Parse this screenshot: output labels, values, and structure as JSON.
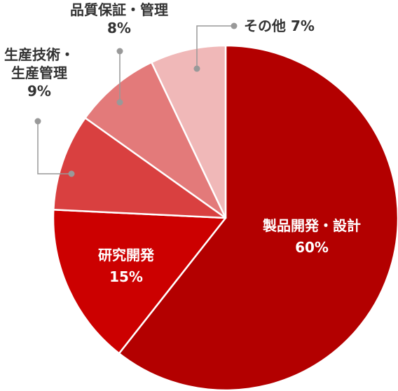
{
  "chart_data": {
    "type": "pie",
    "title": "",
    "colors": [
      "#b30000",
      "#cc0000",
      "#d94040",
      "#e37a7a",
      "#f0b8b8"
    ],
    "leader_color": "#999999",
    "slices": [
      {
        "label": "製品開発・設計",
        "value": 60,
        "value_label": "60%"
      },
      {
        "label": "研究開発",
        "value": 15,
        "value_label": "15%"
      },
      {
        "label": [
          "生産技術・",
          "生産管理"
        ],
        "value": 9,
        "value_label": "9%"
      },
      {
        "label": "品質保証・管理",
        "value": 8,
        "value_label": "8%"
      },
      {
        "label": "その他",
        "value": 7,
        "value_label": "7%"
      }
    ]
  }
}
